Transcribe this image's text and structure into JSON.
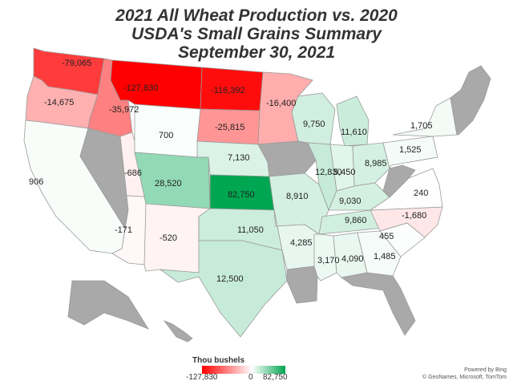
{
  "title": {
    "line1": "2021 All Wheat Production vs. 2020",
    "line2": "USDA's Small Grains Summary",
    "line3": "September 30, 2021"
  },
  "legend": {
    "title": "Thou bushels",
    "min_label": "-127,830",
    "mid_label": "0",
    "max_label": "82,750",
    "min_color": "#ff0000",
    "mid_color": "#ffffff",
    "max_color": "#00a651"
  },
  "attribution": {
    "line1": "Powered by Bing",
    "line2": "© GeoNames, Microsoft, TomTom"
  },
  "colors": {
    "no_data": "#a9a9a9",
    "border": "#9a9a9a"
  },
  "states": [
    {
      "id": "WA",
      "value_label": "-79,065",
      "value": -79065
    },
    {
      "id": "OR",
      "value_label": "-14,675",
      "value": -14675
    },
    {
      "id": "CA",
      "value_label": "906",
      "value": 906
    },
    {
      "id": "ID",
      "value_label": "-35,972",
      "value": -35972
    },
    {
      "id": "NV",
      "value_label": "",
      "value": null
    },
    {
      "id": "UT",
      "value_label": "-686",
      "value": -686
    },
    {
      "id": "AZ",
      "value_label": "-171",
      "value": -171
    },
    {
      "id": "MT",
      "value_label": "-127,830",
      "value": -127830
    },
    {
      "id": "WY",
      "value_label": "700",
      "value": 700
    },
    {
      "id": "CO",
      "value_label": "28,520",
      "value": 28520
    },
    {
      "id": "NM",
      "value_label": "-520",
      "value": -520
    },
    {
      "id": "ND",
      "value_label": "-116,392",
      "value": -116392
    },
    {
      "id": "SD",
      "value_label": "-25,815",
      "value": -25815
    },
    {
      "id": "NE",
      "value_label": "7,130",
      "value": 7130
    },
    {
      "id": "KS",
      "value_label": "82,750",
      "value": 82750
    },
    {
      "id": "OK",
      "value_label": "11,050",
      "value": 11050
    },
    {
      "id": "TX",
      "value_label": "12,500",
      "value": 12500
    },
    {
      "id": "MN",
      "value_label": "-16,400",
      "value": -16400
    },
    {
      "id": "IA",
      "value_label": "",
      "value": null
    },
    {
      "id": "MO",
      "value_label": "8,910",
      "value": 8910
    },
    {
      "id": "AR",
      "value_label": "4,285",
      "value": 4285
    },
    {
      "id": "LA",
      "value_label": "",
      "value": null
    },
    {
      "id": "WI",
      "value_label": "9,750",
      "value": 9750
    },
    {
      "id": "IL",
      "value_label": "12,830",
      "value": 12830
    },
    {
      "id": "MI",
      "value_label": "11,610",
      "value": 11610
    },
    {
      "id": "IN",
      "value_label": "5,450",
      "value": 5450
    },
    {
      "id": "OH",
      "value_label": "8,985",
      "value": 8985
    },
    {
      "id": "KY",
      "value_label": "9,030",
      "value": 9030
    },
    {
      "id": "TN",
      "value_label": "9,860",
      "value": 9860
    },
    {
      "id": "MS",
      "value_label": "3,170",
      "value": 3170
    },
    {
      "id": "AL",
      "value_label": "4,090",
      "value": 4090
    },
    {
      "id": "GA",
      "value_label": "1,485",
      "value": 1485
    },
    {
      "id": "FL",
      "value_label": "",
      "value": null
    },
    {
      "id": "SC",
      "value_label": "455",
      "value": 455
    },
    {
      "id": "NC",
      "value_label": "-1,680",
      "value": -1680
    },
    {
      "id": "VA",
      "value_label": "240",
      "value": 240
    },
    {
      "id": "WV",
      "value_label": "",
      "value": null
    },
    {
      "id": "PA",
      "value_label": "1,525",
      "value": 1525
    },
    {
      "id": "NY",
      "value_label": "1,705",
      "value": 1705
    },
    {
      "id": "NE_REGION",
      "value_label": "",
      "value": null
    },
    {
      "id": "AK",
      "value_label": "",
      "value": null
    },
    {
      "id": "HI",
      "value_label": "",
      "value": null
    }
  ]
}
